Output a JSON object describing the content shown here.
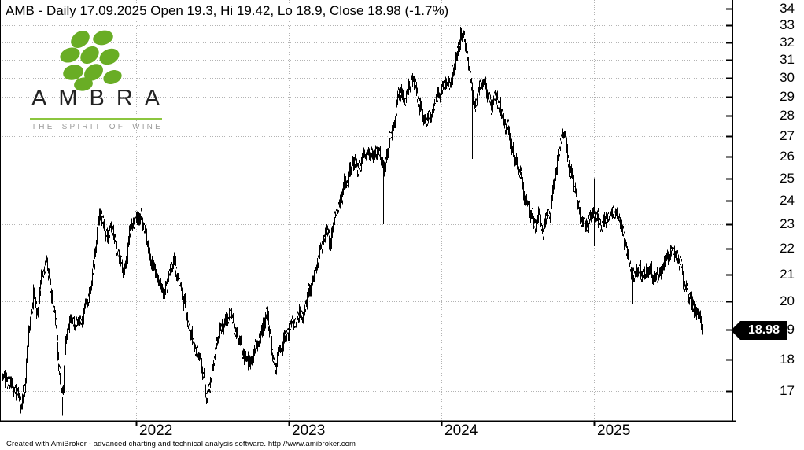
{
  "title": "AMB - Daily 17.09.2025 Open 19.3, Hi 19.42, Lo 18.9, Close 18.98 (-1.7%)",
  "footer": "Created with AmiBroker - advanced charting and technical analysis software. http://www.amibroker.com",
  "logo": {
    "brand": "AMBRA",
    "tagline": "THE SPIRIT OF WINE",
    "grape_color": "#69ad25",
    "rule_color": "#8cc63f",
    "tagline_color": "#9b9b9b",
    "brand_color": "#232323"
  },
  "price_tag": {
    "label": "18.98",
    "bg": "#000000",
    "text_color": "#ffffff"
  },
  "colors": {
    "background": "#ffffff",
    "bars": "#000000",
    "grid": "#b3b3b3",
    "axis": "#000000"
  },
  "chart_data": {
    "type": "candlestick",
    "symbol": "AMB",
    "interval": "Daily",
    "quote_date": "17.09.2025",
    "open": 19.3,
    "high": 19.42,
    "low": 18.9,
    "close": 18.98,
    "change_pct": -1.7,
    "last_price": 18.98,
    "y_axis": {
      "scale": "log",
      "side": "right",
      "ticks": [
        17,
        18,
        19,
        20,
        21,
        22,
        23,
        24,
        25,
        26,
        27,
        28,
        29,
        30,
        31,
        32,
        33,
        34
      ]
    },
    "x_axis": {
      "tick_years": [
        2022,
        2023,
        2024,
        2025
      ]
    },
    "trajectory": [
      [
        2021.119,
        17.4
      ],
      [
        2021.149,
        17.3
      ],
      [
        2021.18,
        17.2
      ],
      [
        2021.211,
        16.9
      ],
      [
        2021.242,
        16.6
      ],
      [
        2021.268,
        17.3
      ],
      [
        2021.294,
        19.0
      ],
      [
        2021.325,
        20.3
      ],
      [
        2021.351,
        19.4
      ],
      [
        2021.376,
        20.9
      ],
      [
        2021.407,
        21.5
      ],
      [
        2021.433,
        20.8
      ],
      [
        2021.459,
        19.8
      ],
      [
        2021.485,
        18.2
      ],
      [
        2021.505,
        16.9
      ],
      [
        2021.52,
        16.7
      ],
      [
        2021.536,
        18.6
      ],
      [
        2021.552,
        19.2
      ],
      [
        2021.582,
        19.5
      ],
      [
        2021.613,
        19.1
      ],
      [
        2021.644,
        19.4
      ],
      [
        2021.675,
        19.9
      ],
      [
        2021.701,
        20.6
      ],
      [
        2021.722,
        21.6
      ],
      [
        2021.742,
        22.8
      ],
      [
        2021.763,
        23.5
      ],
      [
        2021.784,
        23.1
      ],
      [
        2021.809,
        22.5
      ],
      [
        2021.835,
        22.9
      ],
      [
        2021.861,
        22.3
      ],
      [
        2021.887,
        21.7
      ],
      [
        2021.912,
        21.1
      ],
      [
        2021.938,
        21.9
      ],
      [
        2021.964,
        22.9
      ],
      [
        2021.99,
        23.3
      ],
      [
        2022.015,
        23.4
      ],
      [
        2022.041,
        23.0
      ],
      [
        2022.072,
        22.3
      ],
      [
        2022.103,
        21.6
      ],
      [
        2022.134,
        20.8
      ],
      [
        2022.165,
        20.2
      ],
      [
        2022.196,
        20.7
      ],
      [
        2022.227,
        21.0
      ],
      [
        2022.253,
        21.4
      ],
      [
        2022.284,
        20.7
      ],
      [
        2022.314,
        19.9
      ],
      [
        2022.345,
        19.1
      ],
      [
        2022.376,
        18.5
      ],
      [
        2022.407,
        18.3
      ],
      [
        2022.433,
        17.6
      ],
      [
        2022.459,
        16.9
      ],
      [
        2022.485,
        17.3
      ],
      [
        2022.51,
        18.2
      ],
      [
        2022.546,
        18.9
      ],
      [
        2022.582,
        19.2
      ],
      [
        2022.613,
        19.6
      ],
      [
        2022.649,
        19.1
      ],
      [
        2022.686,
        18.5
      ],
      [
        2022.716,
        18.0
      ],
      [
        2022.747,
        17.9
      ],
      [
        2022.784,
        18.5
      ],
      [
        2022.82,
        19.0
      ],
      [
        2022.851,
        19.4
      ],
      [
        2022.881,
        18.6
      ],
      [
        2022.912,
        17.9
      ],
      [
        2022.943,
        18.5
      ],
      [
        2022.974,
        18.9
      ],
      [
        2023.005,
        19.0
      ],
      [
        2023.036,
        19.3
      ],
      [
        2023.067,
        19.8
      ],
      [
        2023.093,
        19.6
      ],
      [
        2023.124,
        20.3
      ],
      [
        2023.155,
        20.8
      ],
      [
        2023.186,
        21.4
      ],
      [
        2023.216,
        22.1
      ],
      [
        2023.242,
        22.9
      ],
      [
        2023.268,
        22.2
      ],
      [
        2023.294,
        23.1
      ],
      [
        2023.325,
        23.9
      ],
      [
        2023.356,
        24.6
      ],
      [
        2023.387,
        25.1
      ],
      [
        2023.418,
        25.7
      ],
      [
        2023.448,
        25.3
      ],
      [
        2023.474,
        25.9
      ],
      [
        2023.505,
        26.2
      ],
      [
        2023.536,
        26.0
      ],
      [
        2023.567,
        26.3
      ],
      [
        2023.598,
        25.9
      ],
      [
        2023.624,
        25.6
      ],
      [
        2023.649,
        26.5
      ],
      [
        2023.68,
        27.3
      ],
      [
        2023.706,
        28.7
      ],
      [
        2023.732,
        29.3
      ],
      [
        2023.758,
        28.7
      ],
      [
        2023.784,
        29.6
      ],
      [
        2023.809,
        30.1
      ],
      [
        2023.835,
        29.3
      ],
      [
        2023.861,
        28.5
      ],
      [
        2023.887,
        27.7
      ],
      [
        2023.918,
        27.9
      ],
      [
        2023.948,
        28.5
      ],
      [
        2023.974,
        29.0
      ],
      [
        2024.0,
        29.3
      ],
      [
        2024.026,
        29.6
      ],
      [
        2024.052,
        29.5
      ],
      [
        2024.077,
        30.4
      ],
      [
        2024.103,
        31.4
      ],
      [
        2024.124,
        32.5
      ],
      [
        2024.144,
        32.0
      ],
      [
        2024.17,
        30.8
      ],
      [
        2024.196,
        29.0
      ],
      [
        2024.222,
        28.8
      ],
      [
        2024.247,
        29.7
      ],
      [
        2024.273,
        29.9
      ],
      [
        2024.299,
        28.9
      ],
      [
        2024.325,
        28.4
      ],
      [
        2024.351,
        29.0
      ],
      [
        2024.376,
        28.5
      ],
      [
        2024.402,
        28.0
      ],
      [
        2024.433,
        27.3
      ],
      [
        2024.459,
        26.5
      ],
      [
        2024.485,
        25.8
      ],
      [
        2024.51,
        25.2
      ],
      [
        2024.536,
        24.5
      ],
      [
        2024.562,
        23.9
      ],
      [
        2024.588,
        23.5
      ],
      [
        2024.613,
        23.1
      ],
      [
        2024.639,
        23.4
      ],
      [
        2024.665,
        22.9
      ],
      [
        2024.691,
        23.0
      ],
      [
        2024.716,
        23.6
      ],
      [
        2024.742,
        24.9
      ],
      [
        2024.768,
        26.2
      ],
      [
        2024.789,
        27.5
      ],
      [
        2024.809,
        26.8
      ],
      [
        2024.835,
        25.4
      ],
      [
        2024.861,
        24.6
      ],
      [
        2024.887,
        24.0
      ],
      [
        2024.912,
        23.4
      ],
      [
        2024.938,
        22.9
      ],
      [
        2024.964,
        23.1
      ],
      [
        2024.99,
        23.8
      ],
      [
        2025.01,
        23.3
      ],
      [
        2025.036,
        22.9
      ],
      [
        2025.062,
        23.0
      ],
      [
        2025.088,
        23.3
      ],
      [
        2025.113,
        23.7
      ],
      [
        2025.134,
        23.9
      ],
      [
        2025.16,
        23.1
      ],
      [
        2025.186,
        22.4
      ],
      [
        2025.211,
        21.8
      ],
      [
        2025.237,
        21.3
      ],
      [
        2025.263,
        21.0
      ],
      [
        2025.289,
        21.2
      ],
      [
        2025.314,
        21.0
      ],
      [
        2025.34,
        21.2
      ],
      [
        2025.366,
        21.0
      ],
      [
        2025.392,
        20.9
      ],
      [
        2025.418,
        21.2
      ],
      [
        2025.443,
        21.1
      ],
      [
        2025.469,
        21.4
      ],
      [
        2025.495,
        21.7
      ],
      [
        2025.515,
        22.0
      ],
      [
        2025.536,
        21.9
      ],
      [
        2025.562,
        21.4
      ],
      [
        2025.588,
        20.7
      ],
      [
        2025.613,
        20.2
      ],
      [
        2025.639,
        19.9
      ],
      [
        2025.66,
        19.7
      ],
      [
        2025.675,
        19.5
      ],
      [
        2025.691,
        19.2
      ],
      [
        2025.701,
        19.1
      ],
      [
        2025.711,
        18.98
      ]
    ],
    "spikes": [
      {
        "t": 2021.242,
        "low": 16.35
      },
      {
        "t": 2021.515,
        "low": 16.25
      },
      {
        "t": 2022.459,
        "low": 16.6
      },
      {
        "t": 2023.619,
        "low": 23.0
      },
      {
        "t": 2024.124,
        "high": 32.9
      },
      {
        "t": 2024.201,
        "low": 25.9
      },
      {
        "t": 2024.789,
        "high": 27.9
      },
      {
        "t": 2025.0,
        "high": 25.0,
        "low": 22.1
      },
      {
        "t": 2025.247,
        "low": 19.9
      },
      {
        "t": 2025.515,
        "high": 22.25
      }
    ]
  }
}
